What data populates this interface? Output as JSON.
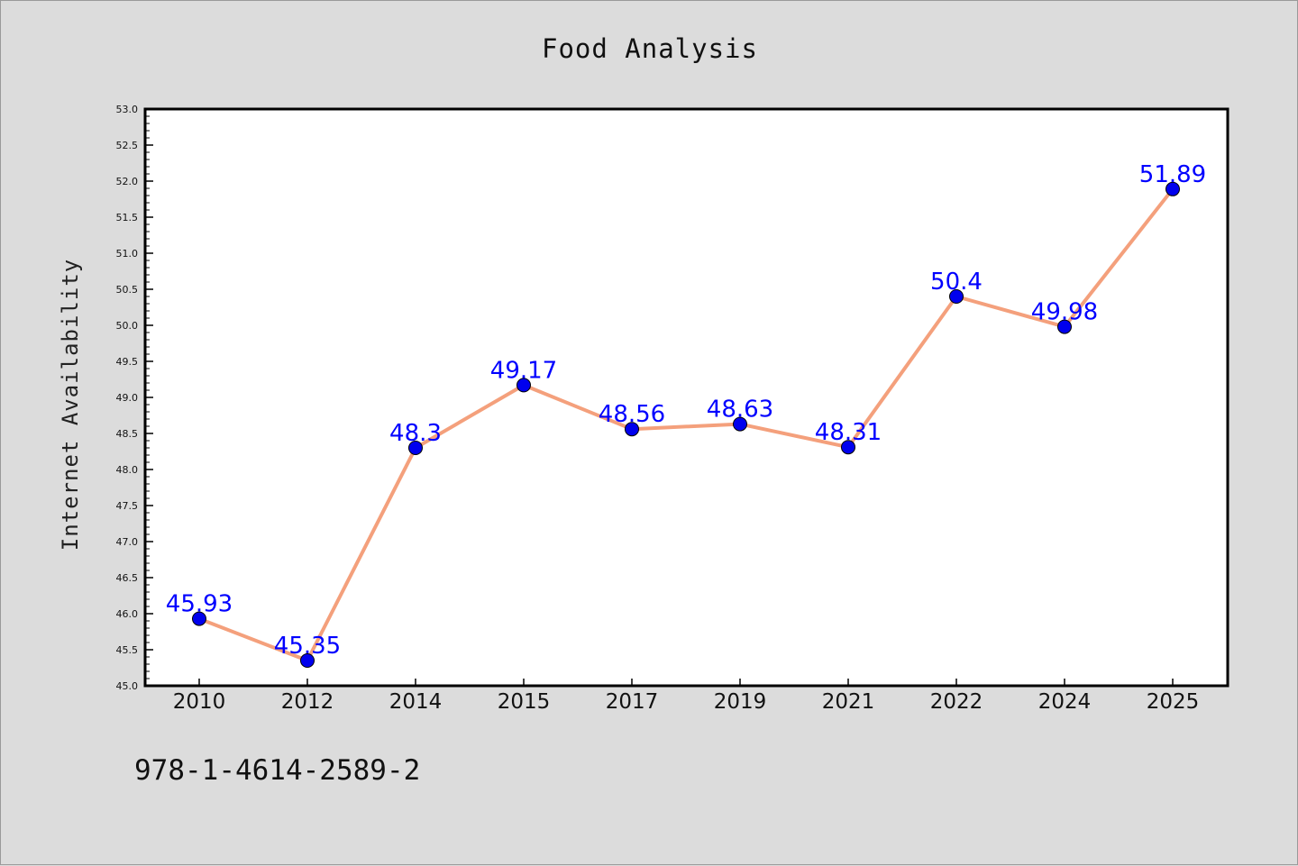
{
  "chart_data": {
    "type": "line",
    "title": "Food Analysis",
    "xlabel": "",
    "ylabel": "Internet Availability",
    "categories": [
      "2010",
      "2012",
      "2014",
      "2015",
      "2017",
      "2019",
      "2021",
      "2022",
      "2024",
      "2025"
    ],
    "series": [
      {
        "values": [
          45.93,
          45.35,
          48.3,
          49.17,
          48.56,
          48.63,
          48.31,
          50.4,
          49.98,
          51.89
        ],
        "labels": [
          "45.93",
          "45.35",
          "48.3",
          "49.17",
          "48.56",
          "48.63",
          "48.31",
          "50.4",
          "49.98",
          "51.89"
        ],
        "line_color": "#f4a07c",
        "marker_color": "#0000ee"
      }
    ],
    "ylim": [
      45.0,
      53.0
    ],
    "yticks": [
      "45.0",
      "45.5",
      "46.0",
      "46.5",
      "47.0",
      "47.5",
      "48.0",
      "48.5",
      "49.0",
      "49.5",
      "50.0",
      "50.5",
      "51.0",
      "51.5",
      "52.0",
      "52.5",
      "53.0"
    ],
    "grid": false,
    "legend": "none"
  },
  "annotation": "978-1-4614-2589-2"
}
